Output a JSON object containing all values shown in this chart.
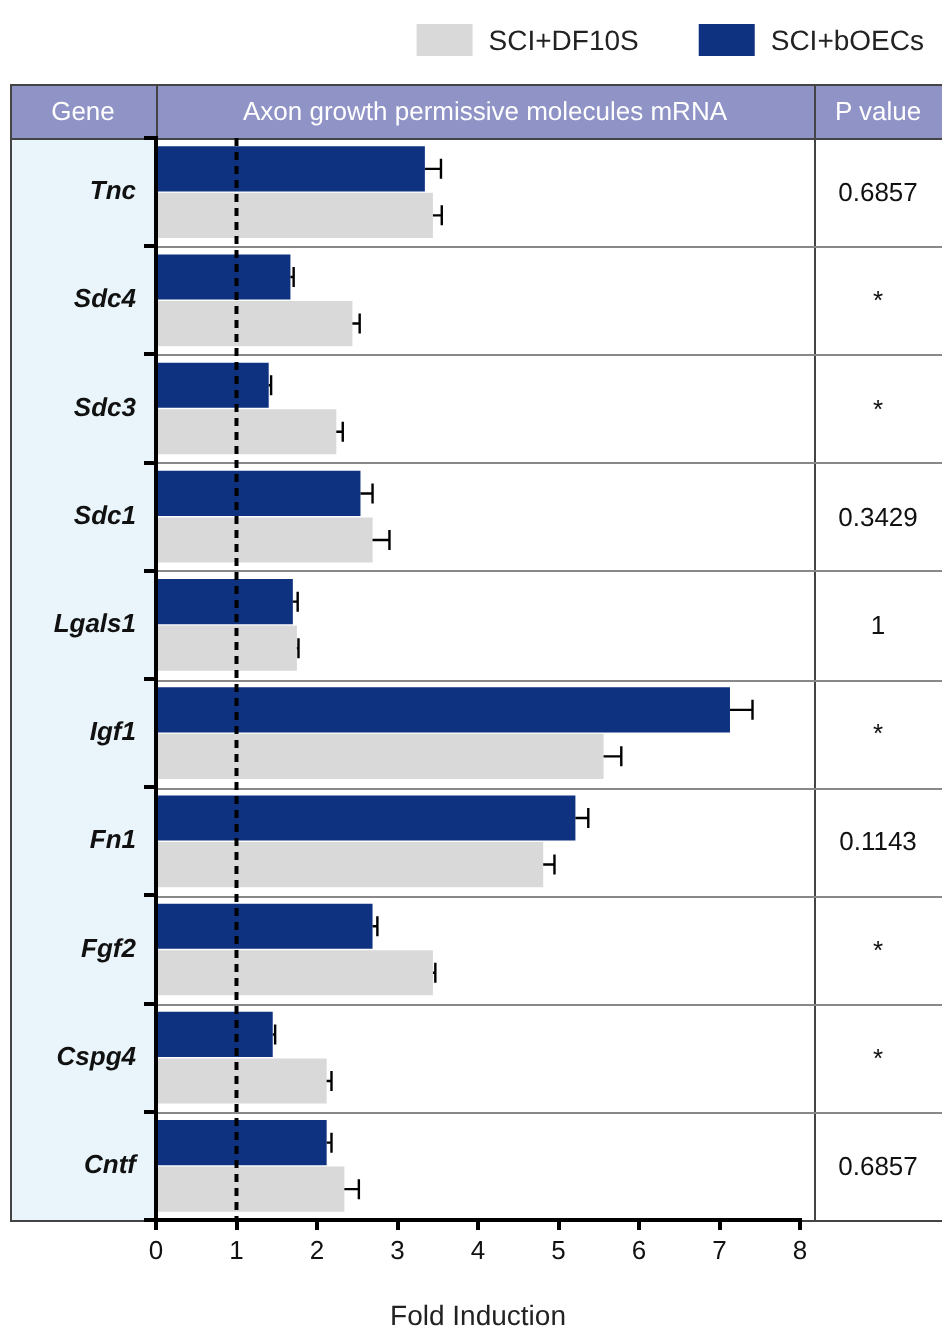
{
  "chart_data": {
    "type": "bar",
    "orientation": "horizontal",
    "title": "Axon growth permissive molecules mRNA",
    "ylabel": "Gene",
    "xlabel": "Fold Induction",
    "categories": [
      "Tnc",
      "Sdc4",
      "Sdc3",
      "Sdc1",
      "Lgals1",
      "Igf1",
      "Fn1",
      "Fgf2",
      "Cspg4",
      "Cntf"
    ],
    "series": [
      {
        "name": "SCI+bOECs",
        "color": "#0e3180",
        "values": [
          3.34,
          1.67,
          1.4,
          2.54,
          1.7,
          7.13,
          5.21,
          2.69,
          1.45,
          2.12
        ],
        "errors": [
          [
            3.34,
            3.54
          ],
          [
            1.67,
            1.71
          ],
          [
            1.4,
            1.43
          ],
          [
            2.54,
            2.69
          ],
          [
            1.7,
            1.76
          ],
          [
            7.13,
            7.41
          ],
          [
            5.21,
            5.37
          ],
          [
            2.69,
            2.75
          ],
          [
            1.45,
            1.48
          ],
          [
            2.12,
            2.18
          ]
        ]
      },
      {
        "name": "SCI+DF10S",
        "color": "#d9d9d9",
        "values": [
          3.44,
          2.44,
          2.24,
          2.69,
          1.75,
          5.56,
          4.81,
          3.44,
          2.12,
          2.34
        ],
        "errors": [
          [
            3.44,
            3.55
          ],
          [
            2.44,
            2.53
          ],
          [
            2.24,
            2.32
          ],
          [
            2.69,
            2.9
          ],
          [
            1.75,
            1.77
          ],
          [
            5.56,
            5.78
          ],
          [
            4.81,
            4.95
          ],
          [
            3.44,
            3.47
          ],
          [
            2.12,
            2.18
          ],
          [
            2.34,
            2.52
          ]
        ]
      }
    ],
    "xlim": [
      0,
      8
    ],
    "xticks": [
      0,
      1,
      2,
      3,
      4,
      5,
      6,
      7,
      8
    ],
    "grid": false,
    "legend": "top right",
    "ref_lines": [
      {
        "axis": "x",
        "value": 1,
        "color": "#000000",
        "line_style": "dashed"
      }
    ],
    "annotations": [
      "P value",
      "0.6857",
      "*",
      "*",
      "0.3429",
      "1",
      "*",
      "0.1143",
      "*",
      "*",
      "0.6857"
    ]
  }
}
